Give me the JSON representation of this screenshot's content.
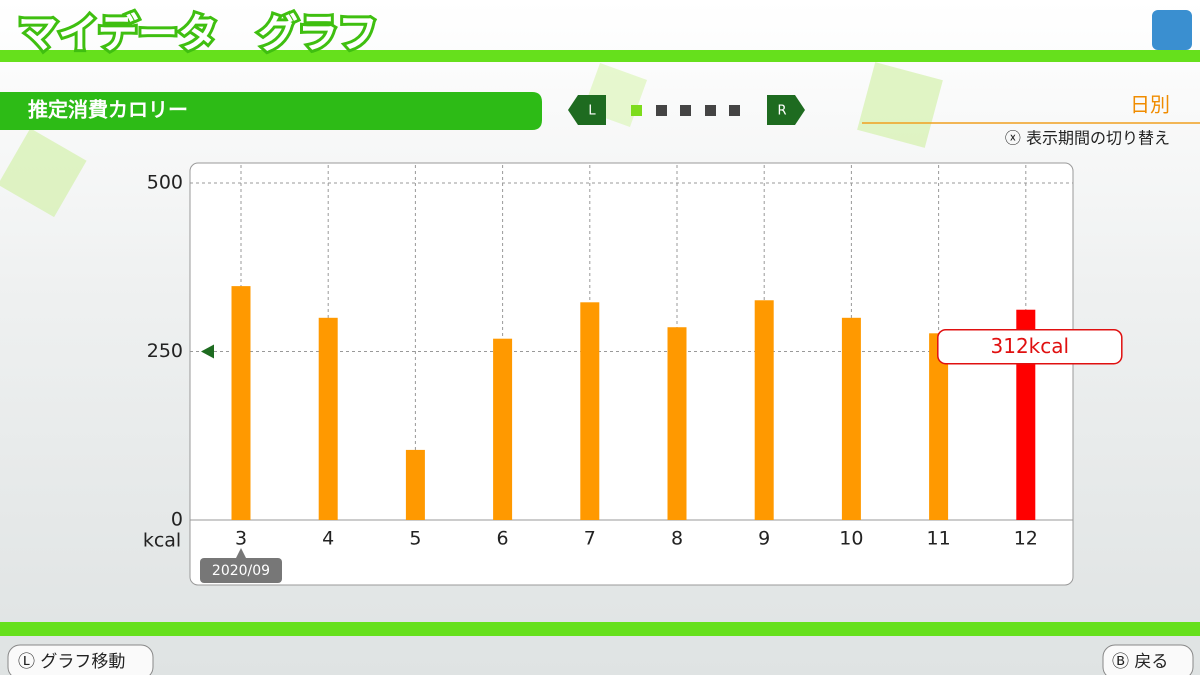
{
  "header": {
    "title": "マイデータ　グラフ",
    "subtitle": "推定消費カロリー",
    "left_button": "L",
    "right_button": "R",
    "period": "日別",
    "period_hint": "ⓧ 表示期間の切り替え"
  },
  "chart_data": {
    "type": "bar",
    "ylabel": "kcal",
    "annotation": "2020/09",
    "categories": [
      "3",
      "4",
      "5",
      "6",
      "7",
      "8",
      "9",
      "10",
      "11",
      "12"
    ],
    "values": [
      347,
      300,
      104,
      269,
      323,
      286,
      326,
      300,
      277,
      312
    ],
    "value_labels": [
      null,
      null,
      null,
      null,
      null,
      null,
      null,
      null,
      null,
      "312kcal"
    ],
    "colors": [
      "#ff9900",
      "#ff9900",
      "#ff9900",
      "#ff9900",
      "#ff9900",
      "#ff9900",
      "#ff9900",
      "#ff9900",
      "#ff9900",
      "#ff0000"
    ],
    "ylim": [
      0,
      500
    ],
    "yticks": [
      0,
      250,
      500
    ],
    "grid": true,
    "marker": 250
  },
  "footer": {
    "left": "Ⓛ グラフ移動",
    "right": "Ⓑ 戻る"
  }
}
